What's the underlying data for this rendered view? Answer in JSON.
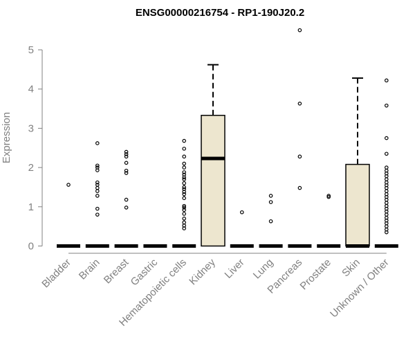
{
  "chart_data": {
    "type": "boxplot",
    "title": "ENSG00000216754 - RP1-190J20.2",
    "xlabel": "",
    "ylabel": "Expression",
    "ylim": [
      0,
      5.6
    ],
    "yticks": [
      0,
      1,
      2,
      3,
      4,
      5
    ],
    "box_fill": "#ede6cf",
    "axis_color": "#808080",
    "categories": [
      "Bladder",
      "Brain",
      "Breast",
      "Gastric",
      "Hematopoietic cells",
      "Kidney",
      "Liver",
      "Lung",
      "Pancreas",
      "Prostate",
      "Skin",
      "Unknown / Other"
    ],
    "boxes": [
      {
        "name": "Bladder",
        "min": 0,
        "q1": 0,
        "median": 0,
        "q3": 0,
        "max": 0,
        "outliers": [
          1.56
        ]
      },
      {
        "name": "Brain",
        "min": 0,
        "q1": 0,
        "median": 0,
        "q3": 0,
        "max": 0,
        "outliers": [
          0.8,
          0.95,
          1.28,
          1.4,
          1.48,
          1.56,
          1.62,
          1.93,
          2.0,
          2.05,
          2.62
        ]
      },
      {
        "name": "Breast",
        "min": 0,
        "q1": 0,
        "median": 0,
        "q3": 0,
        "max": 0,
        "outliers": [
          0.98,
          1.18,
          1.86,
          1.92,
          2.12,
          2.28,
          2.34,
          2.4
        ]
      },
      {
        "name": "Gastric",
        "min": 0,
        "q1": 0,
        "median": 0,
        "q3": 0,
        "max": 0,
        "outliers": []
      },
      {
        "name": "Hematopoietic cells",
        "min": 0,
        "q1": 0,
        "median": 0,
        "q3": 0,
        "max": 0,
        "outliers": [
          0.45,
          0.52,
          0.6,
          0.7,
          0.82,
          0.92,
          0.98,
          1.02,
          1.22,
          1.32,
          1.38,
          1.45,
          1.5,
          1.6,
          1.7,
          1.75,
          1.82,
          1.88,
          2.0,
          2.1,
          2.28,
          2.48,
          2.68
        ]
      },
      {
        "name": "Kidney",
        "min": 0,
        "q1": 0,
        "median": 2.23,
        "q3": 3.33,
        "max": 4.62,
        "outliers": []
      },
      {
        "name": "Liver",
        "min": 0,
        "q1": 0,
        "median": 0,
        "q3": 0,
        "max": 0,
        "outliers": [
          0.86
        ]
      },
      {
        "name": "Lung",
        "min": 0,
        "q1": 0,
        "median": 0,
        "q3": 0,
        "max": 0,
        "outliers": [
          0.63,
          1.12,
          1.28
        ]
      },
      {
        "name": "Pancreas",
        "min": 0,
        "q1": 0,
        "median": 0,
        "q3": 0,
        "max": 0,
        "outliers": [
          1.48,
          2.28,
          3.63,
          5.5
        ]
      },
      {
        "name": "Prostate",
        "min": 0,
        "q1": 0,
        "median": 0,
        "q3": 0,
        "max": 0,
        "outliers": [
          1.25,
          1.28
        ]
      },
      {
        "name": "Skin",
        "min": 0,
        "q1": 0,
        "median": 0,
        "q3": 2.08,
        "max": 4.28,
        "outliers": []
      },
      {
        "name": "Unknown / Other",
        "min": 0,
        "q1": 0,
        "median": 0,
        "q3": 0,
        "max": 0,
        "outliers": [
          0.35,
          0.42,
          0.5,
          0.58,
          0.65,
          0.72,
          0.8,
          0.88,
          0.95,
          1.02,
          1.1,
          1.18,
          1.25,
          1.32,
          1.4,
          1.48,
          1.55,
          1.62,
          1.7,
          1.78,
          1.85,
          1.92,
          2.0,
          2.35,
          2.75,
          3.58,
          4.22
        ]
      }
    ]
  }
}
